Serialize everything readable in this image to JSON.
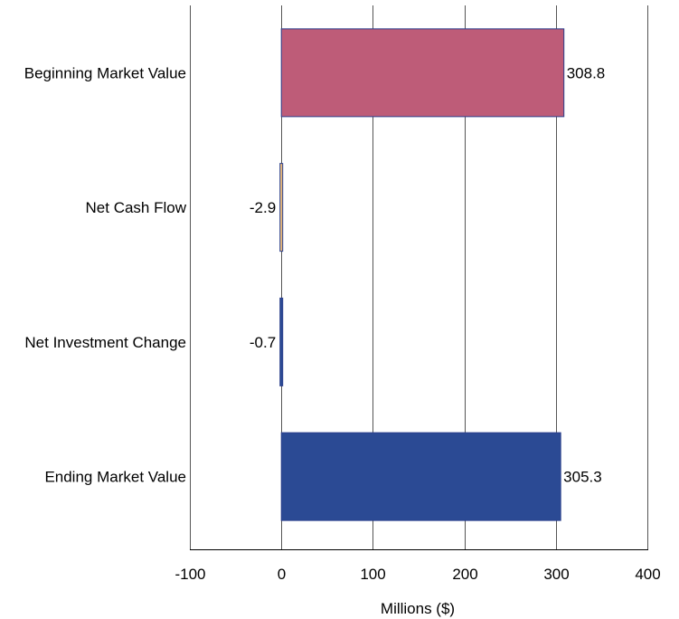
{
  "chart_data": {
    "type": "bar",
    "orientation": "horizontal",
    "categories": [
      "Beginning Market Value",
      "Net Cash Flow",
      "Net Investment Change",
      "Ending Market Value"
    ],
    "values": [
      308.8,
      -2.9,
      -0.7,
      305.3
    ],
    "data_labels": [
      "308.8",
      "-2.9",
      "-0.7",
      "305.3"
    ],
    "bar_colors": [
      "#BE5C78",
      "#E8B87A",
      "#2B4A94",
      "#2B4A94"
    ],
    "bar_outline_color": "#2B3F8C",
    "xlabel": "Millions ($)",
    "ylabel": "",
    "xlim": [
      -100,
      400
    ],
    "xticks": [
      -100,
      0,
      100,
      200,
      300,
      400
    ],
    "xtick_labels": [
      "-100",
      "0",
      "100",
      "200",
      "300",
      "400"
    ],
    "grid": "vertical",
    "gridline_color": "#555555",
    "legend": "none"
  }
}
